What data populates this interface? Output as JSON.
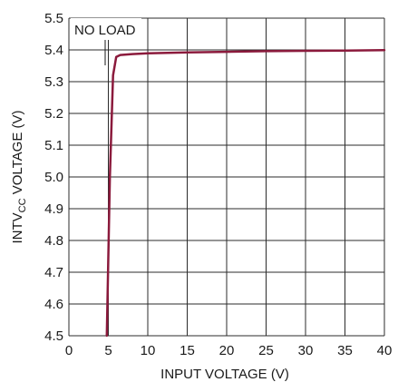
{
  "chart_data": {
    "type": "line",
    "xlabel": "INPUT VOLTAGE (V)",
    "ylabel": {
      "main": "INTV",
      "subscript": "CC",
      "rest": " VOLTAGE (V)"
    },
    "xlim": [
      0,
      40
    ],
    "ylim": [
      4.5,
      5.5
    ],
    "xticks": [
      "0",
      "5",
      "10",
      "15",
      "20",
      "25",
      "30",
      "35",
      "40"
    ],
    "yticks": [
      "4.5",
      "4.6",
      "4.7",
      "4.8",
      "4.9",
      "5.0",
      "5.1",
      "5.2",
      "5.3",
      "5.4",
      "5.5"
    ],
    "grid": true,
    "annotation": "NO LOAD",
    "series": [
      {
        "color": "#8b1a3c",
        "x": [
          4.8,
          5.2,
          5.6,
          6.0,
          6.5,
          8,
          10,
          15,
          20,
          25,
          30,
          35,
          40
        ],
        "y": [
          4.5,
          5.0,
          5.32,
          5.378,
          5.384,
          5.387,
          5.389,
          5.392,
          5.394,
          5.396,
          5.397,
          5.398,
          5.399
        ]
      }
    ]
  }
}
